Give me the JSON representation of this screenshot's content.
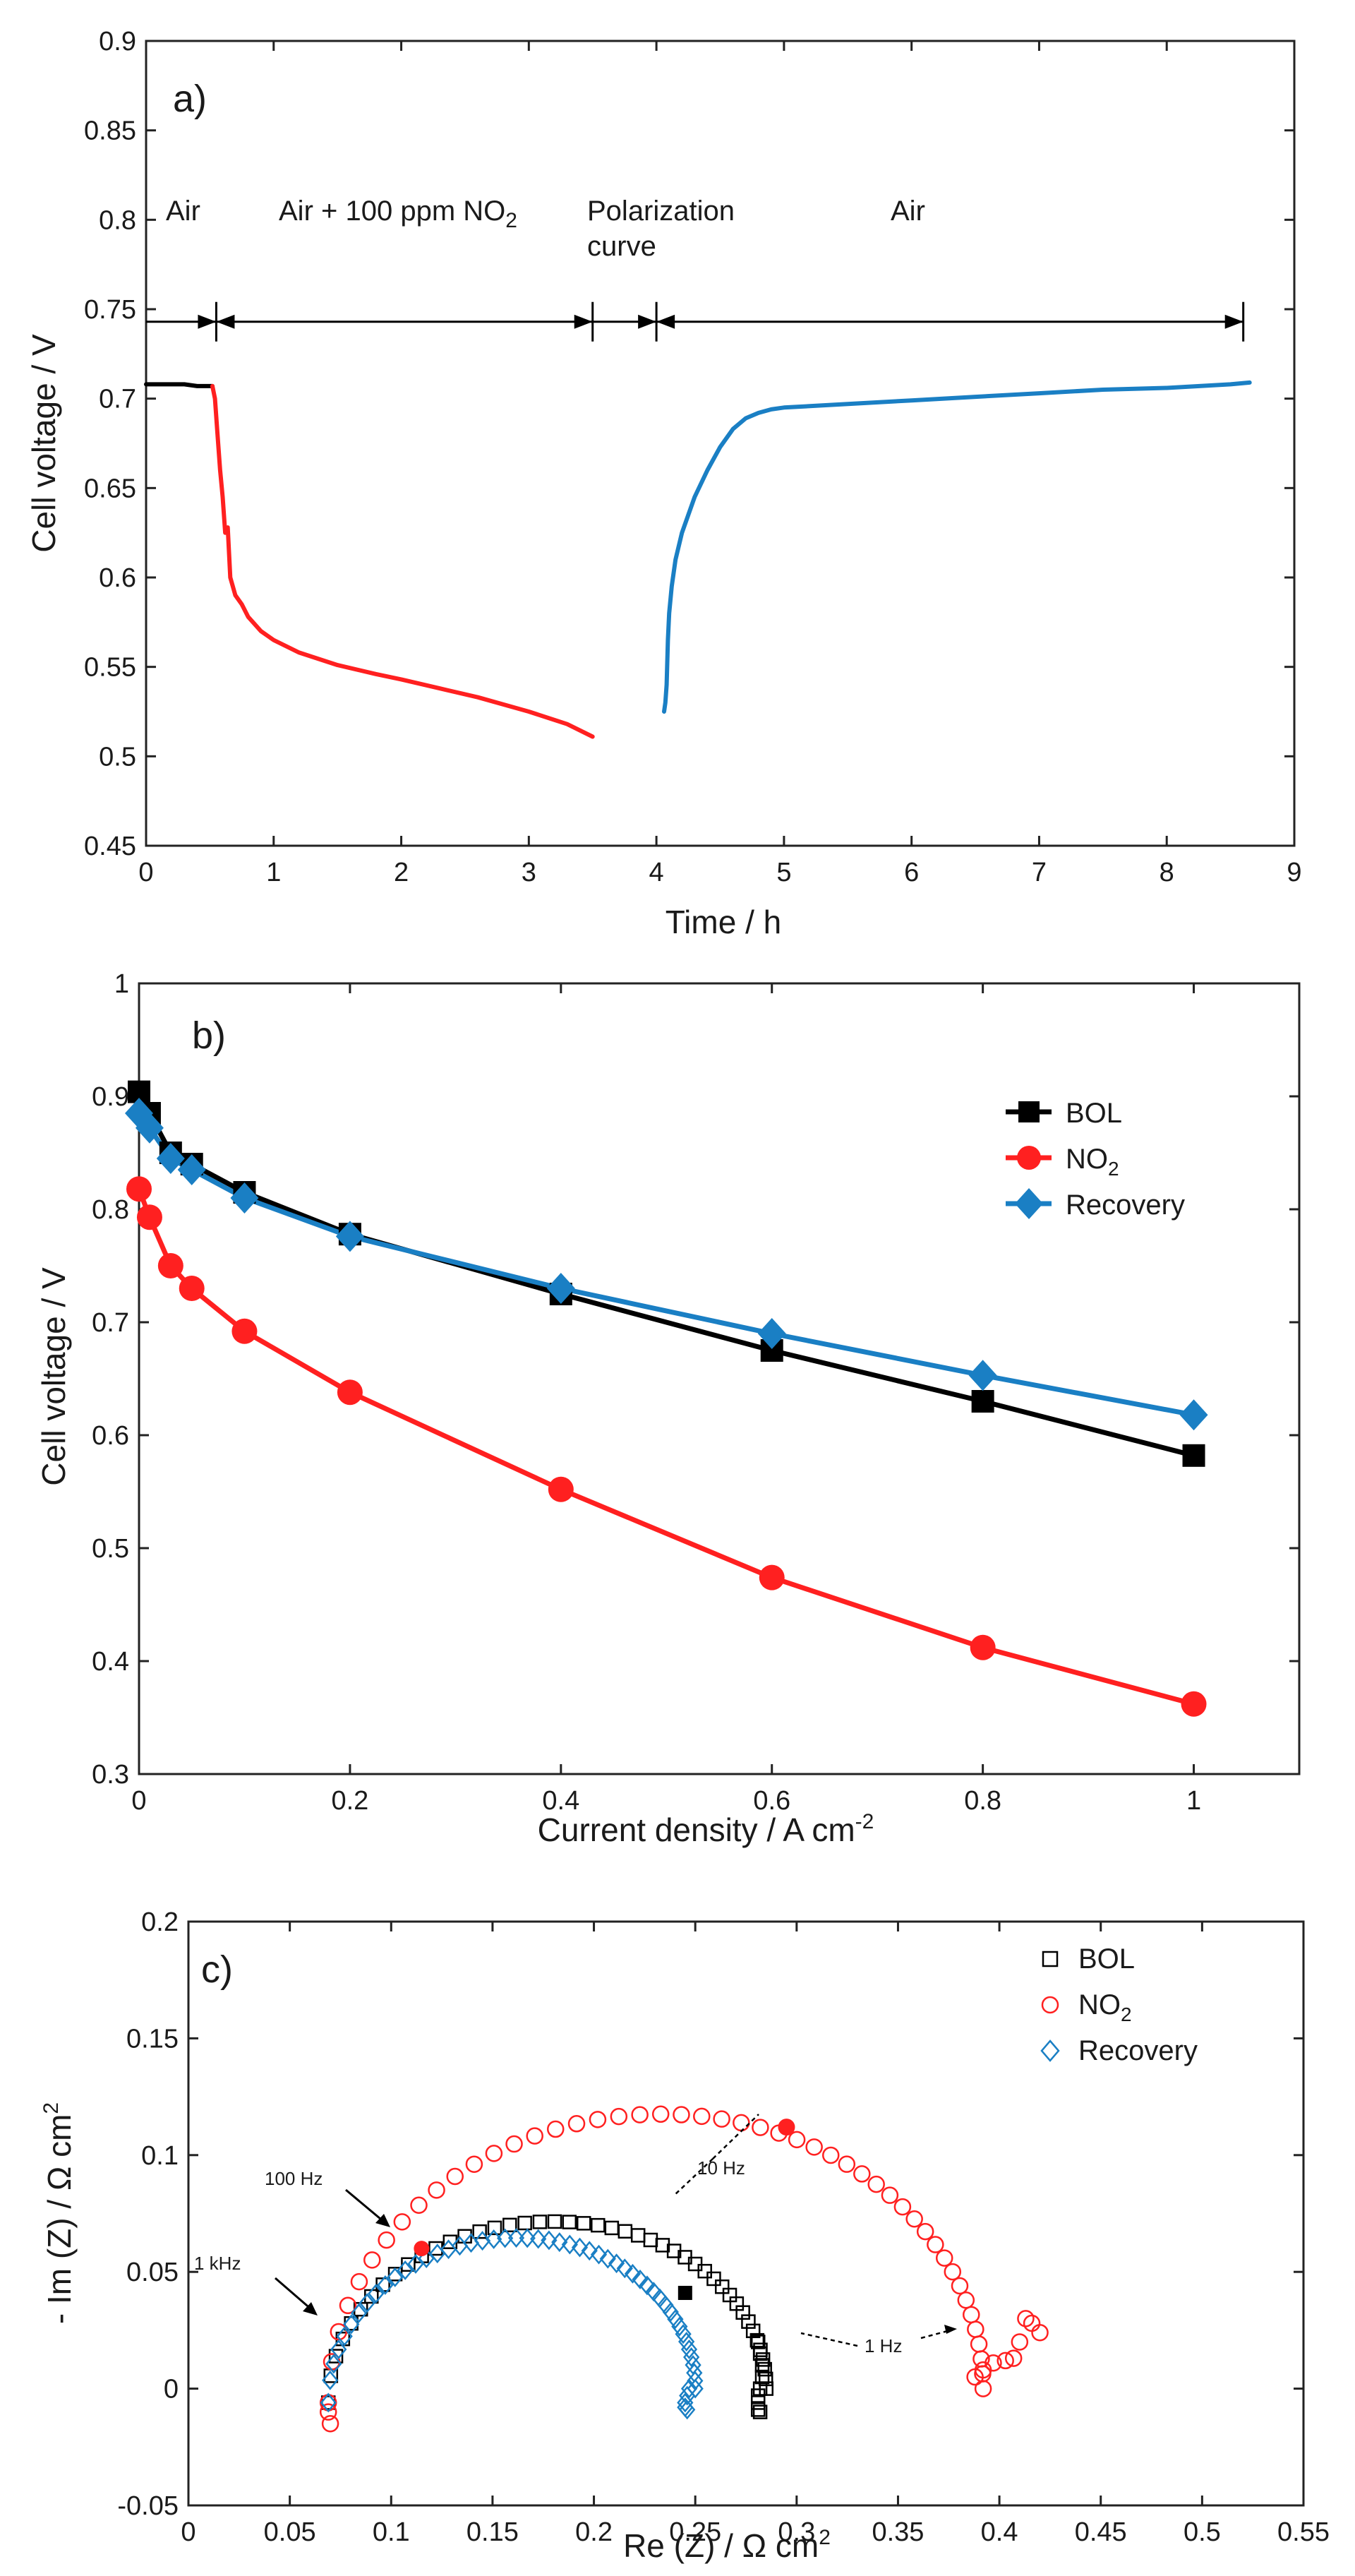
{
  "chart_data": [
    {
      "id": "a",
      "type": "line",
      "panel_label": "a)",
      "xlabel": "Time / h",
      "ylabel": "Cell voltage / V",
      "xlim": [
        0,
        9
      ],
      "ylim": [
        0.45,
        0.9
      ],
      "xticks": [
        0,
        1,
        2,
        3,
        4,
        5,
        6,
        7,
        8,
        9
      ],
      "yticks": [
        0.45,
        0.5,
        0.55,
        0.6,
        0.65,
        0.7,
        0.75,
        0.8,
        0.85,
        0.9
      ],
      "phase_labels": {
        "air1": "Air",
        "no2_prefix": "Air + 100 ppm NO",
        "no2_sub": "2",
        "polar_line1": "Polarization",
        "polar_line2": "curve",
        "air2": "Air"
      },
      "arrow_y": 0.743,
      "arrow_marks": [
        0.55,
        3.5,
        4.0,
        8.6
      ],
      "series": [
        {
          "name": "Air",
          "color": "#000000",
          "x": [
            0,
            0.1,
            0.2,
            0.3,
            0.4,
            0.5,
            0.52
          ],
          "y": [
            0.708,
            0.708,
            0.708,
            0.708,
            0.707,
            0.707,
            0.707
          ]
        },
        {
          "name": "Air + 100 ppm NO2",
          "color": "#ff2020",
          "x": [
            0.52,
            0.54,
            0.56,
            0.58,
            0.6,
            0.62,
            0.64,
            0.66,
            0.7,
            0.75,
            0.8,
            0.9,
            1.0,
            1.2,
            1.5,
            1.8,
            2.0,
            2.3,
            2.6,
            3.0,
            3.3,
            3.5
          ],
          "y": [
            0.707,
            0.7,
            0.68,
            0.66,
            0.645,
            0.625,
            0.628,
            0.6,
            0.59,
            0.585,
            0.578,
            0.57,
            0.565,
            0.558,
            0.551,
            0.546,
            0.543,
            0.538,
            0.533,
            0.525,
            0.518,
            0.511
          ]
        },
        {
          "name": "Air (recovery)",
          "color": "#1a7fc4",
          "x": [
            4.06,
            4.07,
            4.08,
            4.09,
            4.1,
            4.12,
            4.15,
            4.2,
            4.3,
            4.4,
            4.5,
            4.6,
            4.7,
            4.8,
            4.9,
            5.0,
            5.5,
            6.0,
            6.5,
            7.0,
            7.5,
            8.0,
            8.5,
            8.65
          ],
          "y": [
            0.525,
            0.53,
            0.54,
            0.565,
            0.58,
            0.595,
            0.61,
            0.625,
            0.645,
            0.66,
            0.673,
            0.683,
            0.689,
            0.692,
            0.694,
            0.695,
            0.697,
            0.699,
            0.701,
            0.703,
            0.705,
            0.706,
            0.708,
            0.709
          ]
        }
      ]
    },
    {
      "id": "b",
      "type": "line",
      "panel_label": "b)",
      "xlabel_main": "Current density / A cm",
      "xlabel_sup": "-2",
      "ylabel": "Cell voltage / V",
      "xlim": [
        0,
        1.1
      ],
      "ylim": [
        0.3,
        1.0
      ],
      "xticks": [
        0,
        0.2,
        0.4,
        0.6,
        0.8,
        1
      ],
      "yticks": [
        0.3,
        0.4,
        0.5,
        0.6,
        0.7,
        0.8,
        0.9,
        1
      ],
      "legend": {
        "bol": "BOL",
        "no2_main": "NO",
        "no2_sub": "2",
        "recovery": "Recovery"
      },
      "series": [
        {
          "name": "BOL",
          "color": "#000000",
          "marker": "square",
          "x": [
            0,
            0.01,
            0.03,
            0.05,
            0.1,
            0.2,
            0.4,
            0.6,
            0.8,
            1.0
          ],
          "y": [
            0.904,
            0.885,
            0.85,
            0.84,
            0.815,
            0.778,
            0.725,
            0.675,
            0.63,
            0.582
          ]
        },
        {
          "name": "NO2",
          "color": "#ff2020",
          "marker": "circle",
          "x": [
            0,
            0.01,
            0.03,
            0.05,
            0.1,
            0.2,
            0.4,
            0.6,
            0.8,
            1.0
          ],
          "y": [
            0.818,
            0.793,
            0.75,
            0.73,
            0.692,
            0.638,
            0.552,
            0.474,
            0.412,
            0.362
          ]
        },
        {
          "name": "Recovery",
          "color": "#1a7fc4",
          "marker": "diamond",
          "x": [
            0,
            0.01,
            0.03,
            0.05,
            0.1,
            0.2,
            0.4,
            0.6,
            0.8,
            1.0
          ],
          "y": [
            0.885,
            0.872,
            0.845,
            0.835,
            0.81,
            0.776,
            0.73,
            0.69,
            0.653,
            0.618
          ]
        }
      ]
    },
    {
      "id": "c",
      "type": "scatter",
      "panel_label": "c)",
      "xlabel_main": "Re (Z) / Ω  cm",
      "xlabel_sup": "2",
      "ylabel_main": "- Im (Z) / Ω  cm",
      "ylabel_sup": "2",
      "xlim": [
        0,
        0.55
      ],
      "ylim": [
        -0.05,
        0.2
      ],
      "xticks": [
        0,
        0.05,
        0.1,
        0.15,
        0.2,
        0.25,
        0.3,
        0.35,
        0.4,
        0.45,
        0.5,
        0.55
      ],
      "yticks": [
        -0.05,
        0,
        0.05,
        0.1,
        0.15,
        0.2
      ],
      "legend": {
        "bol": "BOL",
        "no2_main": "NO",
        "no2_sub": "2",
        "recovery": "Recovery"
      },
      "freq_labels": {
        "f100": "100 Hz",
        "f1k": "1 kHz",
        "f10": "10 Hz",
        "f1": "1 Hz"
      },
      "series": [
        {
          "name": "BOL",
          "color": "#000000",
          "marker": "square-open",
          "arc": {
            "x0": 0.069,
            "x1": 0.285,
            "peak": 0.075,
            "n": 45
          },
          "tail": {
            "x": [
              0.281,
              0.282,
              0.283,
              0.283,
              0.282,
              0.281,
              0.281,
              0.281,
              0.282
            ],
            "y": [
              0.02,
              0.015,
              0.01,
              0.005,
              0.0,
              -0.003,
              -0.006,
              -0.009,
              -0.01
            ]
          },
          "highlight": {
            "x": 0.245,
            "y": 0.041
          }
        },
        {
          "name": "NO2",
          "color": "#ff2020",
          "marker": "circle-open",
          "arc": {
            "x0": 0.069,
            "x1": 0.392,
            "peak": 0.121,
            "n": 48
          },
          "tail": {
            "x": [
              0.388,
              0.392,
              0.397,
              0.403,
              0.407,
              0.41,
              0.413,
              0.416,
              0.42
            ],
            "y": [
              0.005,
              0.008,
              0.011,
              0.012,
              0.013,
              0.02,
              0.03,
              0.028,
              0.024
            ]
          },
          "extra": {
            "x": [
              0.069,
              0.07
            ],
            "y": [
              -0.01,
              -0.015
            ]
          },
          "highlight": {
            "x": 0.295,
            "y": 0.112
          }
        },
        {
          "name": "Recovery",
          "color": "#1a7fc4",
          "marker": "diamond-open",
          "arc": {
            "x0": 0.069,
            "x1": 0.25,
            "peak": 0.068,
            "n": 50
          },
          "tail": {
            "x": [
              0.247,
              0.246,
              0.245,
              0.245,
              0.246
            ],
            "y": [
              0.0,
              -0.003,
              -0.006,
              -0.008,
              -0.009
            ]
          }
        }
      ]
    }
  ]
}
